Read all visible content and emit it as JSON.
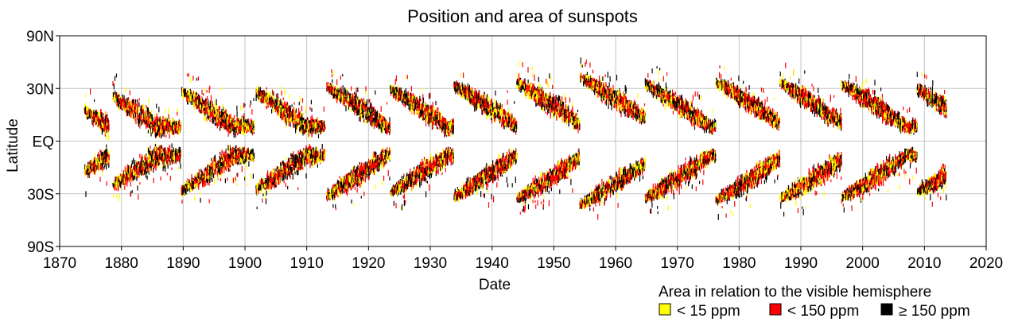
{
  "chart_data": {
    "type": "scatter",
    "title": "Position and area of sunspots",
    "xlabel": "Date",
    "ylabel": "Latitude",
    "xlim": [
      1870,
      2020
    ],
    "x_ticks": [
      1870,
      1880,
      1890,
      1900,
      1910,
      1920,
      1930,
      1940,
      1950,
      1960,
      1970,
      1980,
      1990,
      2000,
      2010,
      2020
    ],
    "y_ticks": [
      {
        "value": 90,
        "label": "90N"
      },
      {
        "value": 30,
        "label": "30N"
      },
      {
        "value": 0,
        "label": "EQ"
      },
      {
        "value": -30,
        "label": "30S"
      },
      {
        "value": -90,
        "label": "90S"
      }
    ],
    "grid": true,
    "legend": {
      "title": "Area in relation to the visible hemisphere",
      "placement": "bottom-right",
      "items": [
        {
          "label": "< 15 ppm",
          "color": "#ffff00"
        },
        {
          "label": "< 150 ppm",
          "color": "#ff0000"
        },
        {
          "label": "≥ 150 ppm",
          "color": "#000000"
        }
      ]
    },
    "cycles": [
      {
        "start": 1874.0,
        "end": 1878.0,
        "max_lat": 22
      },
      {
        "start": 1878.6,
        "end": 1889.6,
        "max_lat": 32
      },
      {
        "start": 1889.7,
        "end": 1901.5,
        "max_lat": 36
      },
      {
        "start": 1901.8,
        "end": 1913.0,
        "max_lat": 35
      },
      {
        "start": 1913.2,
        "end": 1923.5,
        "max_lat": 40
      },
      {
        "start": 1923.5,
        "end": 1933.8,
        "max_lat": 38
      },
      {
        "start": 1933.8,
        "end": 1944.0,
        "max_lat": 41
      },
      {
        "start": 1944.0,
        "end": 1954.2,
        "max_lat": 43
      },
      {
        "start": 1954.2,
        "end": 1964.8,
        "max_lat": 48
      },
      {
        "start": 1964.8,
        "end": 1976.2,
        "max_lat": 42
      },
      {
        "start": 1976.2,
        "end": 1986.6,
        "max_lat": 44
      },
      {
        "start": 1986.6,
        "end": 1996.6,
        "max_lat": 43
      },
      {
        "start": 1996.6,
        "end": 2008.8,
        "max_lat": 42
      },
      {
        "start": 2008.8,
        "end": 2013.6,
        "max_lat": 38
      }
    ]
  }
}
